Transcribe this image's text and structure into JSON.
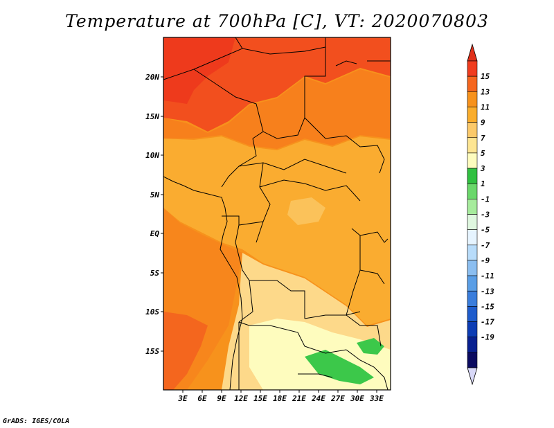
{
  "title": "Temperature at 700hPa [C], VT: 2020070803",
  "footer": "GrADS: IGES/COLA",
  "map": {
    "lon_labels": [
      "3E",
      "6E",
      "9E",
      "12E",
      "15E",
      "18E",
      "21E",
      "24E",
      "27E",
      "30E",
      "33E"
    ],
    "lat_labels": [
      "20N",
      "15N",
      "10N",
      "5N",
      "EQ",
      "5S",
      "10S",
      "15S"
    ],
    "field": "Temperature at 700hPa",
    "units": "C"
  },
  "colorbar": {
    "labels": [
      "15",
      "13",
      "11",
      "9",
      "7",
      "5",
      "3",
      "1",
      "-1",
      "-3",
      "-5",
      "-7",
      "-9",
      "-11",
      "-13",
      "-15",
      "-17",
      "-19"
    ],
    "colors": [
      "#f03c1e",
      "#f5661e",
      "#f7921c",
      "#faad2c",
      "#fbc96a",
      "#fde592",
      "#fefcbe",
      "#30c040",
      "#6ad76a",
      "#a6eb9c",
      "#dff7df",
      "#e6f4ff",
      "#b8dcfa",
      "#8bbef0",
      "#5a9ee6",
      "#3a7ddc",
      "#1e5ccc",
      "#0c3cb4",
      "#082090",
      "#0a0a60"
    ],
    "top_arrow_color": "#e0301a",
    "bottom_arrow_color": "#d8d8f8"
  },
  "palette": {
    "hot": "#f0421e",
    "warm": "#f7781c",
    "mid": "#faa22a",
    "light": "#fbc253",
    "pale": "#fde58e",
    "cream": "#fefcc0",
    "green": "#3cc84a"
  }
}
